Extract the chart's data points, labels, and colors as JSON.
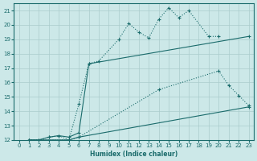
{
  "xlabel": "Humidex (Indice chaleur)",
  "background_color": "#cce8e8",
  "grid_color": "#aacccc",
  "line_color": "#1a6b6b",
  "xlim": [
    -0.5,
    23.5
  ],
  "ylim": [
    12,
    21.5
  ],
  "xticks": [
    0,
    1,
    2,
    3,
    4,
    5,
    6,
    7,
    8,
    9,
    10,
    11,
    12,
    13,
    14,
    15,
    16,
    17,
    18,
    19,
    20,
    21,
    22,
    23
  ],
  "yticks": [
    12,
    13,
    14,
    15,
    16,
    17,
    18,
    19,
    20,
    21
  ],
  "line1_x": [
    1,
    2,
    3,
    4,
    5,
    6,
    7,
    8,
    10,
    11,
    12,
    13,
    14,
    15,
    16,
    17,
    19,
    20
  ],
  "line1_y": [
    12,
    12,
    12.2,
    12.3,
    12,
    14.5,
    17.3,
    17.5,
    19.0,
    20.1,
    19.5,
    19.1,
    20.4,
    21.2,
    20.5,
    21.0,
    19.2,
    19.2
  ],
  "line2_x": [
    1,
    2,
    3,
    4,
    5,
    6,
    7,
    23
  ],
  "line2_y": [
    12,
    12,
    12.2,
    12.3,
    12.2,
    12.5,
    17.3,
    19.2
  ],
  "line3_x": [
    1,
    5,
    6,
    14,
    20,
    21,
    22,
    23
  ],
  "line3_y": [
    12,
    12,
    12.2,
    15.5,
    16.8,
    15.8,
    15.1,
    14.4
  ],
  "line4_x": [
    1,
    5,
    6,
    23
  ],
  "line4_y": [
    12,
    12,
    12.2,
    14.3
  ]
}
